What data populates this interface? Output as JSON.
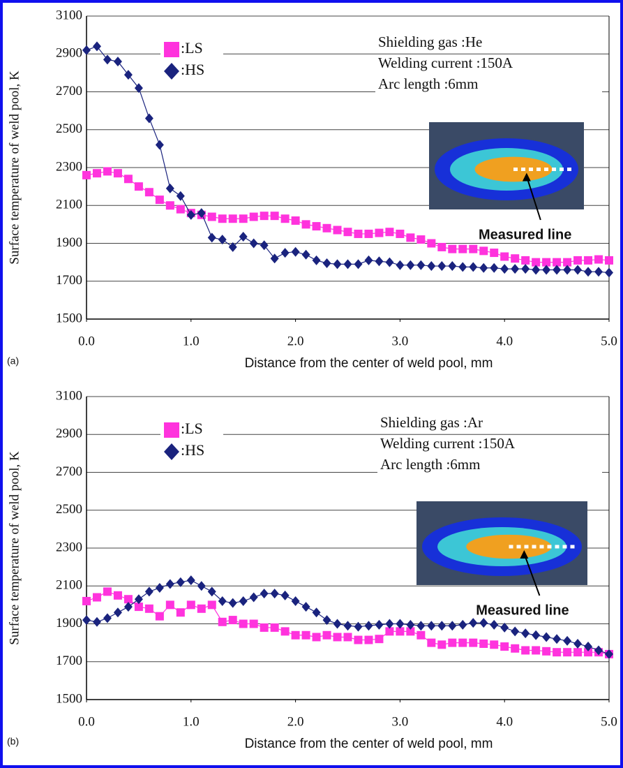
{
  "chart_data": [
    {
      "type": "line",
      "panel_label": "(a)",
      "xlabel": "Distance from the center of weld pool, mm",
      "ylabel": "Surface temperature of weld pool, K",
      "x": [
        0,
        0.1,
        0.2,
        0.3,
        0.4,
        0.5,
        0.6,
        0.7,
        0.8,
        0.9,
        1,
        1.1,
        1.2,
        1.3,
        1.4,
        1.5,
        1.6,
        1.7,
        1.8,
        1.9,
        2,
        2.1,
        2.2,
        2.3,
        2.4,
        2.5,
        2.6,
        2.7,
        2.8,
        2.9,
        3,
        3.1,
        3.2,
        3.3,
        3.4,
        3.5,
        3.6,
        3.7,
        3.8,
        3.9,
        4,
        4.1,
        4.2,
        4.3,
        4.4,
        4.5,
        4.6,
        4.7,
        4.8,
        4.9,
        5
      ],
      "xlim": [
        0,
        5
      ],
      "xticks": [
        {
          "value": 0,
          "label": "0.0"
        },
        {
          "value": 1,
          "label": "1.0"
        },
        {
          "value": 2,
          "label": "2.0"
        },
        {
          "value": 3,
          "label": "3.0"
        },
        {
          "value": 4,
          "label": "4.0"
        },
        {
          "value": 5,
          "label": "5.0"
        }
      ],
      "ylim": [
        1500,
        3100
      ],
      "yticks": [
        1500,
        1700,
        1900,
        2100,
        2300,
        2500,
        2700,
        2900,
        3100
      ],
      "grid": true,
      "series": [
        {
          "name": ":LS",
          "color": "#ff33dd",
          "marker": "square",
          "values": [
            2260,
            2270,
            2280,
            2270,
            2240,
            2200,
            2170,
            2130,
            2100,
            2080,
            2060,
            2050,
            2040,
            2030,
            2030,
            2030,
            2040,
            2045,
            2045,
            2030,
            2020,
            2000,
            1990,
            1980,
            1970,
            1960,
            1950,
            1950,
            1955,
            1960,
            1950,
            1930,
            1920,
            1900,
            1880,
            1870,
            1870,
            1870,
            1860,
            1850,
            1830,
            1820,
            1810,
            1800,
            1800,
            1800,
            1800,
            1810,
            1810,
            1815,
            1810
          ]
        },
        {
          "name": ":HS",
          "color": "#1a237e",
          "marker": "diamond",
          "values": [
            2920,
            2940,
            2870,
            2860,
            2790,
            2720,
            2560,
            2420,
            2190,
            2150,
            2050,
            2060,
            1930,
            1920,
            1880,
            1935,
            1900,
            1890,
            1820,
            1850,
            1855,
            1840,
            1810,
            1795,
            1790,
            1790,
            1790,
            1810,
            1805,
            1800,
            1785,
            1785,
            1785,
            1780,
            1780,
            1780,
            1775,
            1775,
            1770,
            1770,
            1765,
            1765,
            1765,
            1760,
            1760,
            1760,
            1760,
            1760,
            1750,
            1750,
            1745
          ]
        }
      ],
      "annotations": [
        "Shielding gas :He",
        "Welding current :150A",
        "Arc length :6mm"
      ],
      "inset_label": "Measured line"
    },
    {
      "type": "line",
      "panel_label": "(b)",
      "xlabel": "Distance from the center of weld pool, mm",
      "ylabel": "Surface temperature of weld pool, K",
      "x": [
        0,
        0.1,
        0.2,
        0.3,
        0.4,
        0.5,
        0.6,
        0.7,
        0.8,
        0.9,
        1,
        1.1,
        1.2,
        1.3,
        1.4,
        1.5,
        1.6,
        1.7,
        1.8,
        1.9,
        2,
        2.1,
        2.2,
        2.3,
        2.4,
        2.5,
        2.6,
        2.7,
        2.8,
        2.9,
        3,
        3.1,
        3.2,
        3.3,
        3.4,
        3.5,
        3.6,
        3.7,
        3.8,
        3.9,
        4,
        4.1,
        4.2,
        4.3,
        4.4,
        4.5,
        4.6,
        4.7,
        4.8,
        4.9,
        5
      ],
      "xlim": [
        0,
        5
      ],
      "xticks": [
        {
          "value": 0,
          "label": "0.0"
        },
        {
          "value": 1,
          "label": "1.0"
        },
        {
          "value": 2,
          "label": "2.0"
        },
        {
          "value": 3,
          "label": "3.0"
        },
        {
          "value": 4,
          "label": "4.0"
        },
        {
          "value": 5,
          "label": "5.0"
        }
      ],
      "ylim": [
        1500,
        3100
      ],
      "yticks": [
        1500,
        1700,
        1900,
        2100,
        2300,
        2500,
        2700,
        2900,
        3100
      ],
      "grid": true,
      "series": [
        {
          "name": ":LS",
          "color": "#ff33dd",
          "marker": "square",
          "values": [
            2020,
            2040,
            2070,
            2050,
            2030,
            1990,
            1980,
            1940,
            2000,
            1960,
            2000,
            1980,
            2000,
            1910,
            1920,
            1900,
            1900,
            1880,
            1880,
            1860,
            1840,
            1840,
            1830,
            1840,
            1830,
            1830,
            1815,
            1815,
            1820,
            1860,
            1860,
            1860,
            1840,
            1800,
            1790,
            1800,
            1800,
            1800,
            1795,
            1790,
            1780,
            1770,
            1760,
            1760,
            1755,
            1750,
            1750,
            1750,
            1750,
            1750,
            1740
          ]
        },
        {
          "name": ":HS",
          "color": "#1a237e",
          "marker": "diamond",
          "values": [
            1920,
            1910,
            1930,
            1960,
            1990,
            2030,
            2070,
            2090,
            2110,
            2120,
            2130,
            2100,
            2070,
            2020,
            2010,
            2020,
            2040,
            2060,
            2060,
            2050,
            2020,
            1990,
            1960,
            1920,
            1900,
            1890,
            1885,
            1890,
            1895,
            1900,
            1900,
            1895,
            1890,
            1890,
            1890,
            1890,
            1895,
            1905,
            1905,
            1895,
            1880,
            1860,
            1850,
            1840,
            1830,
            1820,
            1810,
            1795,
            1780,
            1760,
            1740
          ]
        }
      ],
      "annotations": [
        "Shielding gas :Ar",
        "Welding current :150A",
        "Arc length :6mm"
      ],
      "inset_label": "Measured line"
    }
  ]
}
